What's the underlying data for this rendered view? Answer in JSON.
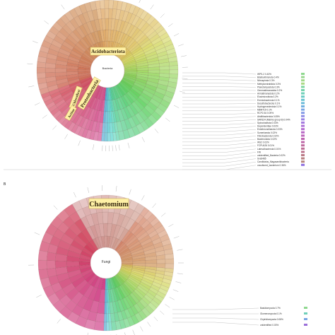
{
  "panel_b_letter": "B",
  "chart_data": [
    {
      "type": "sunburst",
      "root": "Bacteria",
      "highlighted_labels": [
        "Acidobacteriota",
        "Proteobacteria",
        "Chloroflexi",
        "Actino"
      ],
      "legend": [
        {
          "name": "WPS-2",
          "value": "0.43%",
          "color": "#8fd88f"
        },
        {
          "name": "Bdellovibrionota",
          "value": "0.4%",
          "color": "#9ad890"
        },
        {
          "name": "Nitrospirota",
          "value": "0.3%",
          "color": "#a3d98a"
        },
        {
          "name": "Methylomirabilota",
          "value": "0.3%",
          "color": "#acd985"
        },
        {
          "name": "Planctomycetota",
          "value": "0.3%",
          "color": "#7fd6a0"
        },
        {
          "name": "Gemmatimonadota",
          "value": "0.2%",
          "color": "#76d3ad"
        },
        {
          "name": "Armatimonadota",
          "value": "0.2%",
          "color": "#6fd0b8"
        },
        {
          "name": "Elusimicrobiota",
          "value": "0.2%",
          "color": "#6acbc4"
        },
        {
          "name": "Eremiobacterota",
          "value": "0.1%",
          "color": "#68c4d0"
        },
        {
          "name": "Desulfobacterota",
          "value": "0.1%",
          "color": "#6bbbd9"
        },
        {
          "name": "Hydrogenedentota",
          "value": "0.1%",
          "color": "#71b1e0"
        },
        {
          "name": "MBNT15",
          "value": "0.1%",
          "color": "#7aa6e4"
        },
        {
          "name": "RCP2-54",
          "value": "0.09%",
          "color": "#849ae6"
        },
        {
          "name": "Abditibacteriota",
          "value": "0.05%",
          "color": "#8f8ee6"
        },
        {
          "name": "SAR324 (Marine group B)",
          "value": "0.04%",
          "color": "#9a83e4"
        },
        {
          "name": "Spirochaetota",
          "value": "0.03%",
          "color": "#a47adf"
        },
        {
          "name": "Dependentiae",
          "value": "0.03%",
          "color": "#ad72d8"
        },
        {
          "name": "Entotheonellaeota",
          "value": "0.03%",
          "color": "#b46cd0"
        },
        {
          "name": "Sumerlaeota",
          "value": "0.02%",
          "color": "#b968c6"
        },
        {
          "name": "Fibrobacterota",
          "value": "0.02%",
          "color": "#bc66bc"
        },
        {
          "name": "Bacteroidota",
          "value": "0.02%",
          "color": "#be66b2"
        },
        {
          "name": "WS2",
          "value": "0.02%",
          "color": "#bf68a8"
        },
        {
          "name": "FCPU426",
          "value": "0.01%",
          "color": "#bf6b9f"
        },
        {
          "name": "Latescibacterota",
          "value": "0.01%",
          "color": "#be6f96"
        },
        {
          "name": "FW",
          "value": "",
          "color": "#bd748e"
        },
        {
          "name": "unidentified_Bacteria",
          "value": "0.02%",
          "color": "#bb7a87"
        },
        {
          "name": "Sva0485",
          "value": "",
          "color": "#b98081"
        },
        {
          "name": "Candidatus_Magasanikbacteria",
          "value": "",
          "color": "#b6867c"
        },
        {
          "name": "uncultured_bacterium",
          "value": "0.36%",
          "color": "#8f70e0"
        }
      ]
    },
    {
      "type": "sunburst",
      "root": "Fungi",
      "highlighted_labels": [
        "Chaetomium"
      ],
      "legend": [
        {
          "name": "Basidiomycota",
          "value": "0.7%",
          "color": "#8fd88f"
        },
        {
          "name": "Glomeromycota",
          "value": "0.1%",
          "color": "#6fd0b8"
        },
        {
          "name": "Chytridiomycota",
          "value": "0.08%",
          "color": "#7aa6e4"
        },
        {
          "name": "unidentified",
          "value": "0.03%",
          "color": "#9a6fd9"
        }
      ]
    }
  ]
}
